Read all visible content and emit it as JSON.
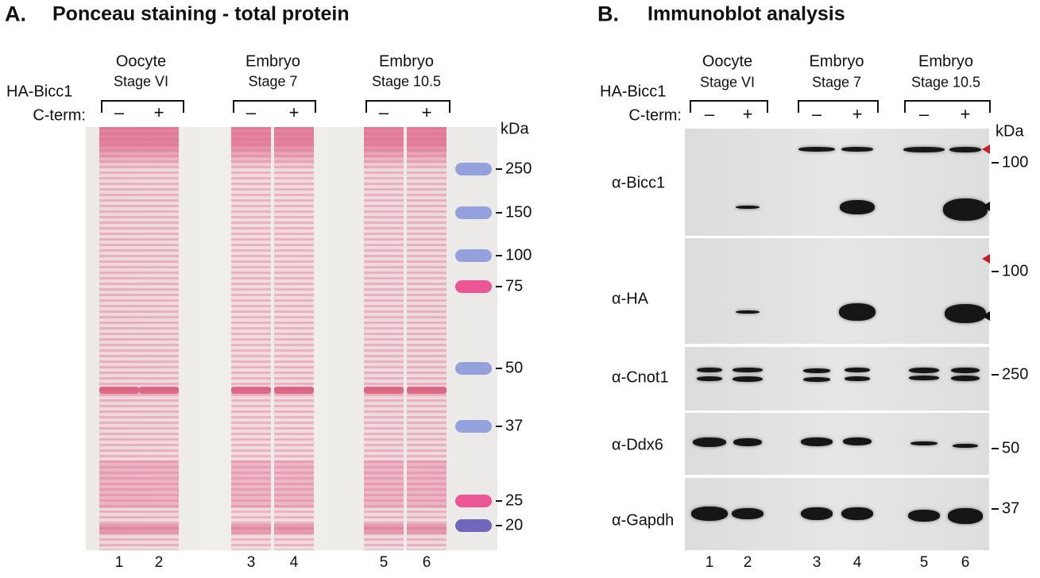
{
  "panel_a": {
    "letter": "A.",
    "title": "Ponceau staining - total protein",
    "groups": [
      {
        "name": "Oocyte",
        "stage": "Stage VI"
      },
      {
        "name": "Embryo",
        "stage": "Stage 7"
      },
      {
        "name": "Embryo",
        "stage": "Stage 10.5"
      }
    ],
    "row_labels": [
      "HA-Bicc1",
      "C-term:"
    ],
    "signs": [
      "–",
      "+",
      "–",
      "+",
      "–",
      "+"
    ],
    "unit": "kDa",
    "markers": [
      "250",
      "150",
      "100",
      "75",
      "50",
      "37",
      "25",
      "20"
    ],
    "lanes": [
      "1",
      "2",
      "3",
      "4",
      "5",
      "6"
    ]
  },
  "panel_b": {
    "letter": "B.",
    "title": "Immunoblot analysis",
    "groups": [
      {
        "name": "Oocyte",
        "stage": "Stage VI"
      },
      {
        "name": "Embryo",
        "stage": "Stage 7"
      },
      {
        "name": "Embryo",
        "stage": "Stage 10.5"
      }
    ],
    "row_labels": [
      "HA-Bicc1",
      "C-term:"
    ],
    "signs": [
      "–",
      "+",
      "–",
      "+",
      "–",
      "+"
    ],
    "unit": "kDa",
    "blots": [
      {
        "label": "α-Bicc1",
        "marker": "100"
      },
      {
        "label": "α-HA",
        "marker": "100"
      },
      {
        "label": "α-Cnot1",
        "marker": "250"
      },
      {
        "label": "α-Ddx6",
        "marker": "50"
      },
      {
        "label": "α-Gapdh",
        "marker": "37"
      }
    ],
    "lanes": [
      "1",
      "2",
      "3",
      "4",
      "5",
      "6"
    ]
  }
}
